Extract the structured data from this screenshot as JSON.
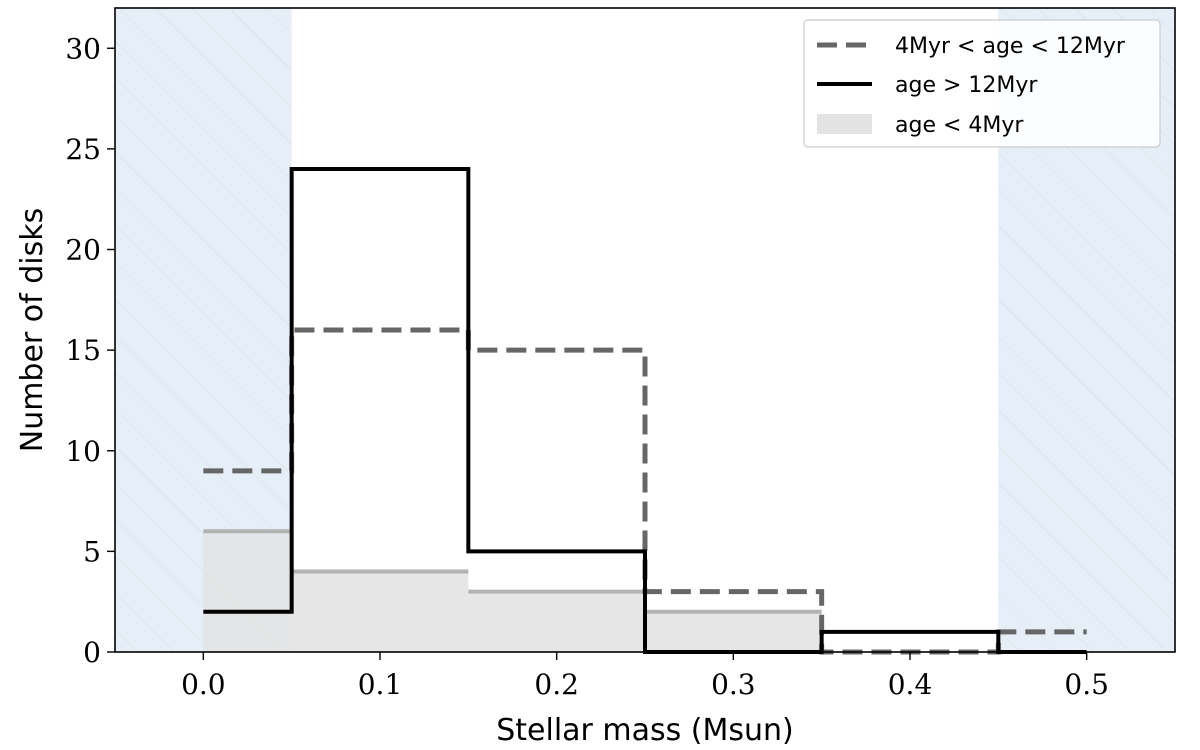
{
  "chart_data": {
    "type": "histogram",
    "xlabel": "Stellar mass (Msun)",
    "ylabel": "Number of disks",
    "xlim": [
      -0.05,
      0.55
    ],
    "ylim": [
      0,
      32
    ],
    "xticks": [
      "0.0",
      "0.1",
      "0.2",
      "0.3",
      "0.4",
      "0.5"
    ],
    "yticks": [
      "0",
      "5",
      "10",
      "15",
      "20",
      "25",
      "30"
    ],
    "bin_edges": [
      0.0,
      0.05,
      0.15,
      0.25,
      0.35,
      0.45,
      0.5
    ],
    "shaded_regions": [
      {
        "from": -0.05,
        "to": 0.05,
        "color": "#e6eff7"
      },
      {
        "from": 0.45,
        "to": 0.55,
        "color": "#e6eff7"
      }
    ],
    "legend_position": "top-right",
    "series": [
      {
        "name": "4Myr < age < 12Myr",
        "style": "dashed",
        "color": "#666666",
        "values": [
          9,
          16,
          15,
          3,
          0,
          1
        ]
      },
      {
        "name": "age > 12Myr",
        "style": "solid",
        "color": "#000000",
        "values": [
          2,
          24,
          5,
          0,
          1,
          0
        ]
      },
      {
        "name": "age < 4Myr",
        "style": "filled",
        "color": "#e3e3e3",
        "edge_color": "#b3b3b3",
        "values": [
          6,
          4,
          3,
          2,
          0,
          0
        ]
      }
    ]
  }
}
